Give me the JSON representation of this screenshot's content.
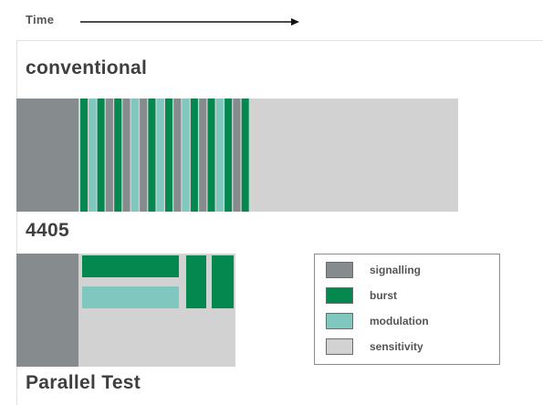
{
  "time_label": "Time",
  "conventional_title": "conventional",
  "mid_title": "4405",
  "parallel_title": "Parallel Test",
  "colors": {
    "signalling": "#868c8d",
    "burst": "#048850",
    "modulation": "#7fc7bf",
    "sensitivity": "#d2d2d2",
    "border": "#6b6b6b"
  },
  "conventional_sequence": [
    "burst",
    "modulation",
    "burst",
    "signalling",
    "burst",
    "signalling",
    "modulation",
    "signalling",
    "burst",
    "modulation",
    "burst",
    "signalling",
    "modulation",
    "burst",
    "signalling",
    "burst",
    "modulation",
    "burst",
    "signalling",
    "burst"
  ],
  "legend": [
    {
      "key": "signalling",
      "label": "signalling"
    },
    {
      "key": "burst",
      "label": "burst"
    },
    {
      "key": "modulation",
      "label": "modulation"
    },
    {
      "key": "sensitivity",
      "label": "sensitivity"
    }
  ]
}
